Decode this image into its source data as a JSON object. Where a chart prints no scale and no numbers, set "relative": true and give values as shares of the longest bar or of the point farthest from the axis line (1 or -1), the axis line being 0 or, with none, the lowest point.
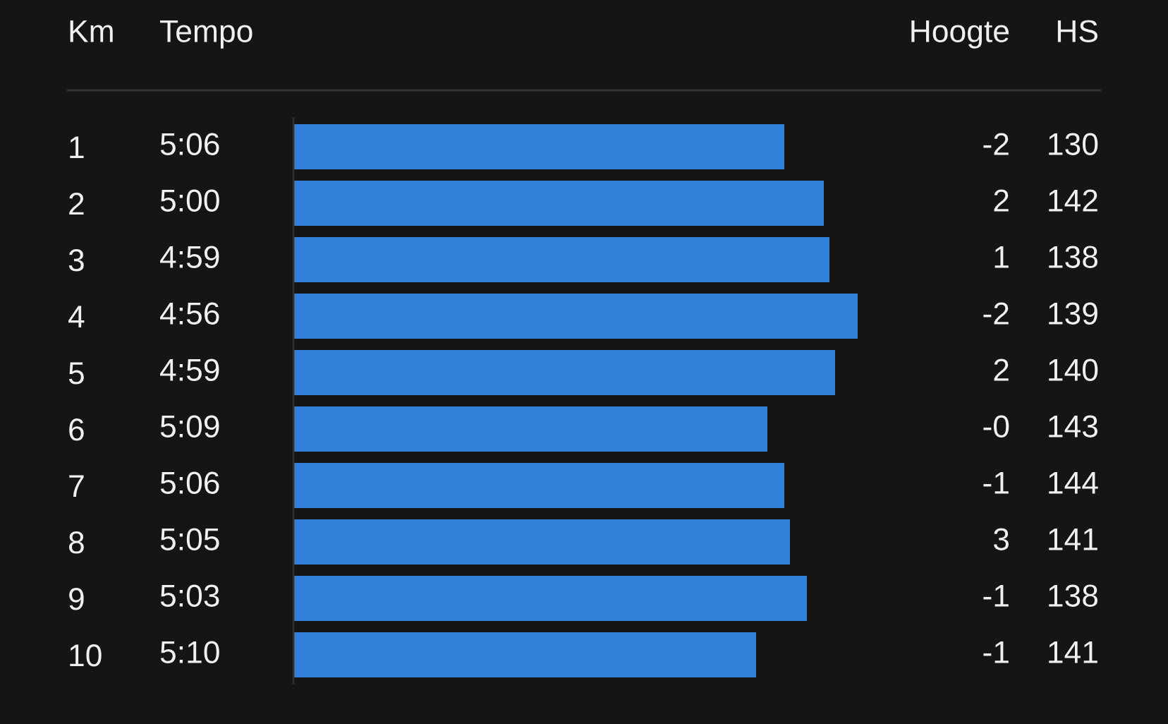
{
  "chart_data": [
    {
      "type": "bar",
      "orientation": "horizontal",
      "relative": true,
      "ylabel": "Km",
      "categories": [
        "1",
        "2",
        "3",
        "4",
        "5",
        "6",
        "7",
        "8",
        "9",
        "10"
      ],
      "values": [
        0.87,
        0.94,
        0.95,
        1,
        0.96,
        0.84,
        0.87,
        0.88,
        0.91,
        0.82
      ],
      "color": "#3180d9"
    },
    {
      "type": "other",
      "title": "Tempo",
      "categories": [
        "5:06",
        "5:00",
        "4:59",
        "4:56",
        "4:59",
        "5:09",
        "5:06",
        "5:05",
        "5:03",
        "5:10"
      ]
    },
    {
      "type": "other",
      "title": "Hoogte",
      "values": [
        -2,
        2,
        1,
        -2,
        2,
        0,
        -1,
        3,
        -1,
        -1
      ],
      "value_labels": [
        "-2",
        "2",
        "1",
        "-2",
        "2",
        "-0",
        "-1",
        "3",
        "-1",
        "-1"
      ]
    },
    {
      "type": "other",
      "title": "HS",
      "values": [
        130,
        142,
        138,
        139,
        140,
        143,
        144,
        141,
        138,
        141
      ],
      "data_labels": true
    }
  ]
}
